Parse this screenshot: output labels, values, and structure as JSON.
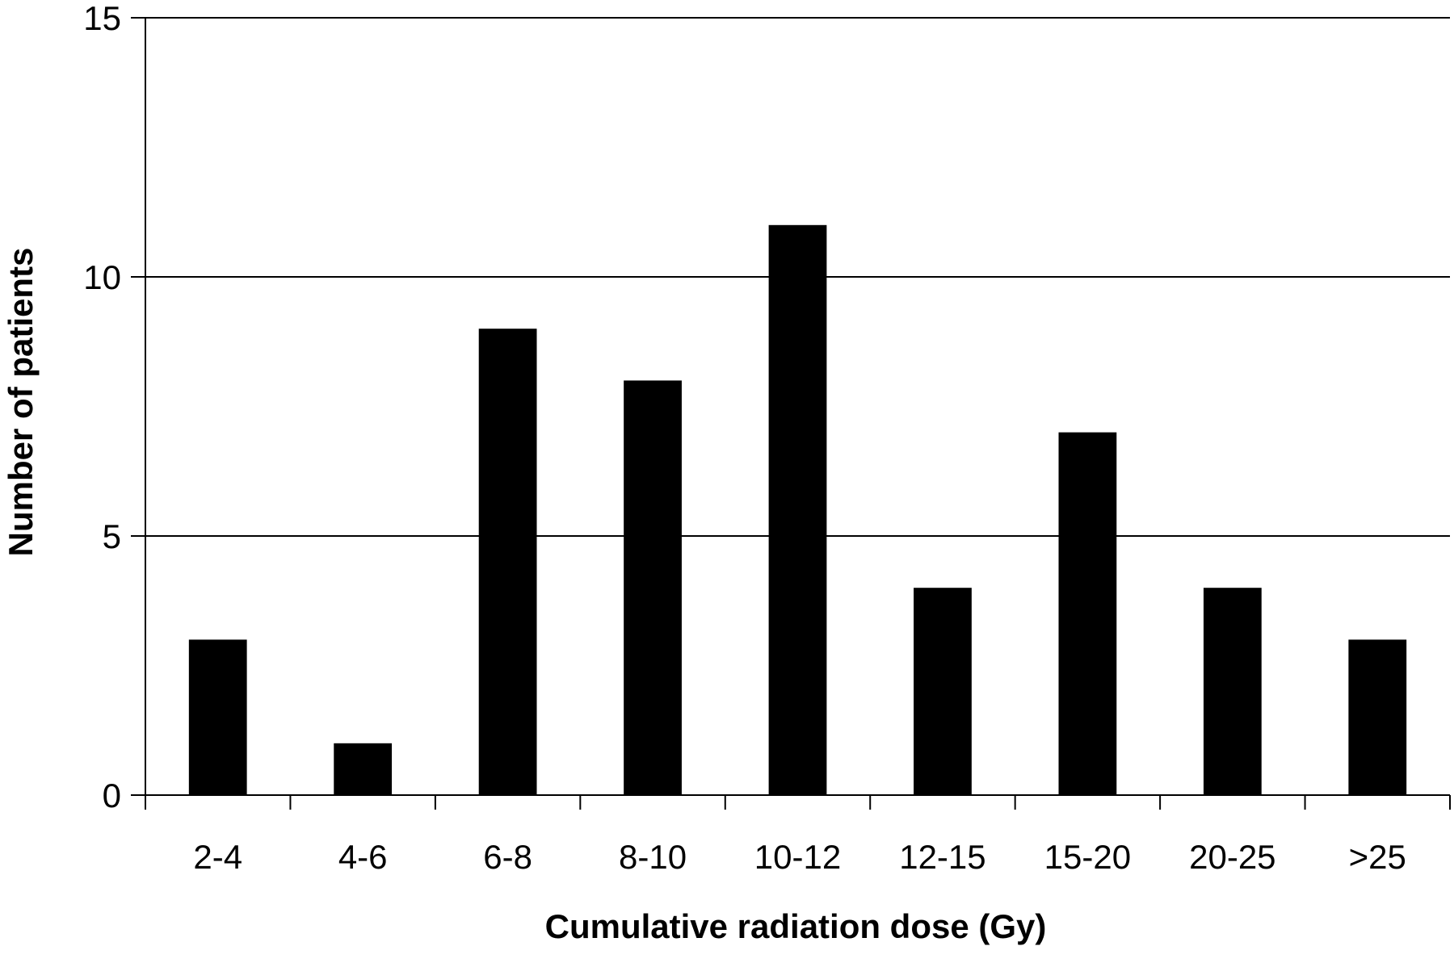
{
  "chart_data": {
    "type": "bar",
    "title": "",
    "xlabel": "Cumulative radiation dose (Gy)",
    "ylabel": "Number of patients",
    "categories": [
      "2-4",
      "4-6",
      "6-8",
      "8-10",
      "10-12",
      "12-15",
      "15-20",
      "20-25",
      ">25"
    ],
    "values": [
      3,
      1,
      9,
      8,
      11,
      4,
      7,
      4,
      3
    ],
    "ylim": [
      0,
      15
    ],
    "yticks": [
      0,
      5,
      10,
      15
    ],
    "grid": true,
    "legend": "none",
    "colors": {
      "bar": "#000000",
      "grid": "#000000",
      "background": "#ffffff"
    }
  }
}
